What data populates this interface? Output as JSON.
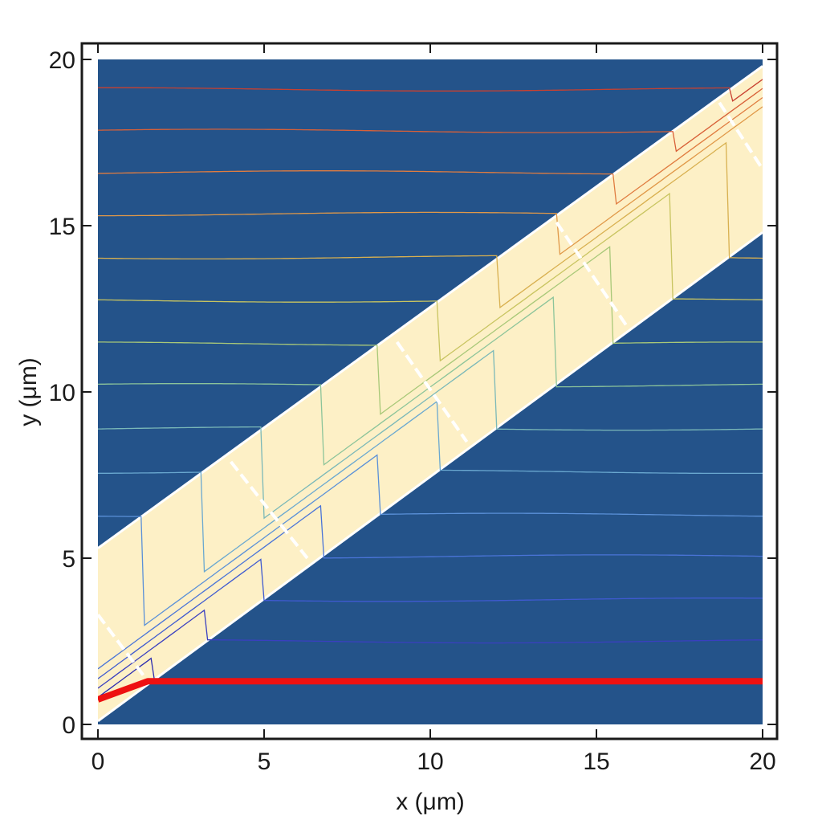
{
  "chart_data": {
    "type": "line",
    "xlabel": "x (μm)",
    "ylabel": "y (μm)",
    "xlim": [
      0,
      20
    ],
    "ylim": [
      0,
      20
    ],
    "xticks": [
      0,
      5,
      10,
      15,
      20
    ],
    "yticks": [
      0,
      5,
      10,
      15,
      20
    ],
    "grid": false,
    "colors": {
      "background": "#24538a",
      "band": "#fdf0c6",
      "band_edge": "#ffffff",
      "segment_marker": "#ffffff",
      "highlight": "#ee1111",
      "frame": "#1a1a1a"
    },
    "band": {
      "lower_edge": [
        [
          0,
          0.1
        ],
        [
          20,
          14.8
        ]
      ],
      "upper_edge": [
        [
          0,
          5.3
        ],
        [
          20,
          19.8
        ]
      ]
    },
    "segment_markers": [
      [
        [
          0,
          3.3
        ],
        [
          1.5,
          1.3
        ]
      ],
      [
        [
          4.0,
          7.9
        ],
        [
          6.3,
          5.0
        ]
      ],
      [
        [
          9.0,
          11.5
        ],
        [
          11.1,
          8.5
        ]
      ],
      [
        [
          13.8,
          15.1
        ],
        [
          15.9,
          12.0
        ]
      ],
      [
        [
          18.7,
          18.7
        ],
        [
          20.0,
          16.7
        ]
      ]
    ],
    "stream_levels": [
      1.3,
      2.5,
      3.75,
      5.05,
      6.3,
      7.6,
      8.9,
      10.2,
      11.45,
      12.75,
      14.05,
      15.35,
      16.6,
      17.85,
      19.1
    ],
    "stream_colors": [
      "#2b2bb0",
      "#3a3fc0",
      "#3f5ad0",
      "#4a74d8",
      "#5a90d8",
      "#6aa8d0",
      "#7ab8b8",
      "#8cc49a",
      "#a8c878",
      "#c8c460",
      "#d8b050",
      "#e09848",
      "#e07c40",
      "#d86038",
      "#c84030"
    ],
    "series": [
      {
        "x": [
          0,
          1.5,
          20
        ],
        "y": [
          0.75,
          1.3,
          1.3
        ]
      }
    ]
  }
}
